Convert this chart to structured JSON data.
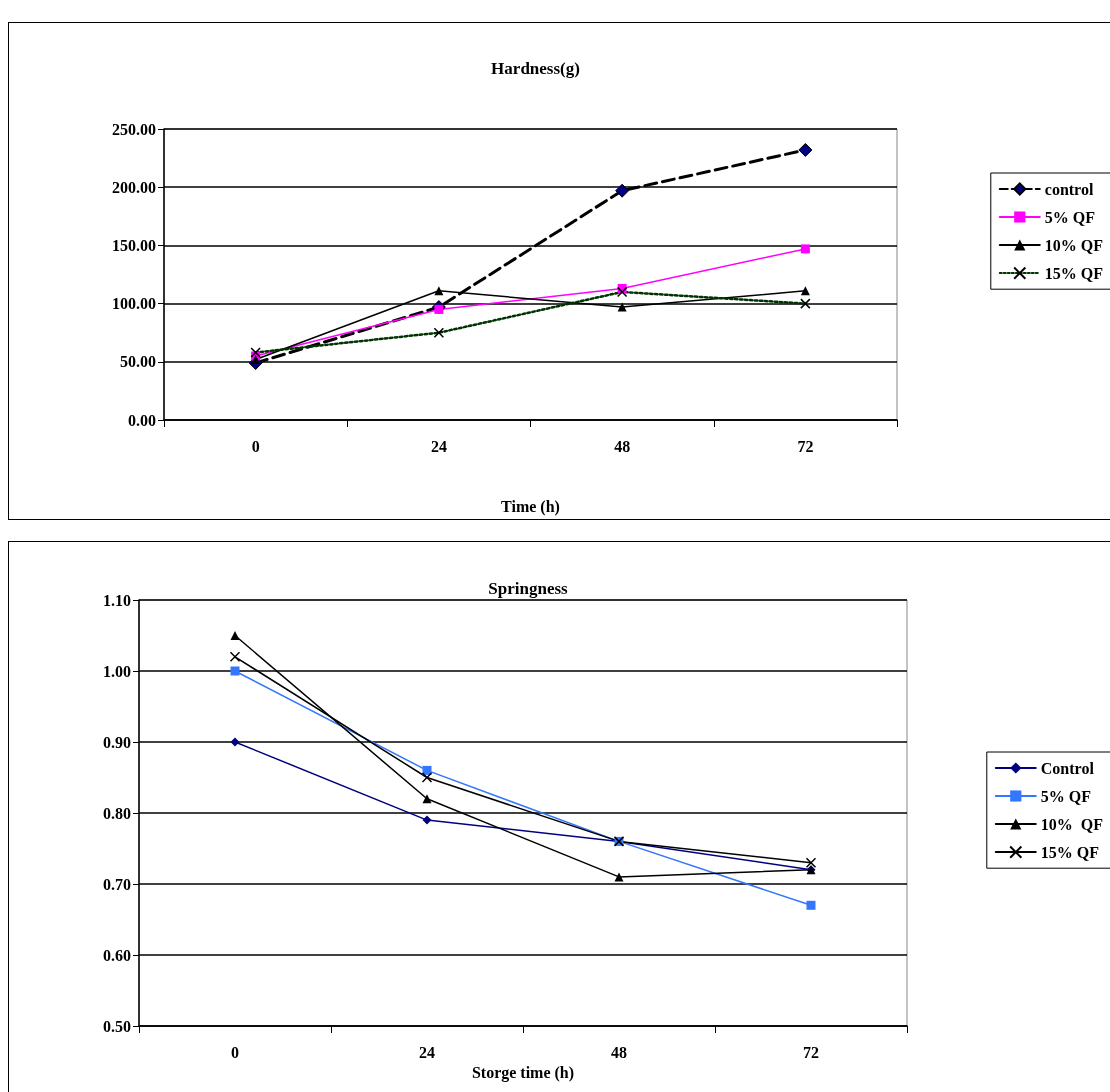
{
  "chart_data": [
    {
      "type": "line",
      "title": "Hardness(g)",
      "xlabel": "Time (h)",
      "categories": [
        "0",
        "24",
        "48",
        "72"
      ],
      "ylim": [
        0,
        250
      ],
      "yticks": [
        {
          "value": 0,
          "label": "0.00"
        },
        {
          "value": 50,
          "label": "50.00"
        },
        {
          "value": 100,
          "label": "100.00"
        },
        {
          "value": 150,
          "label": "150.00"
        },
        {
          "value": 200,
          "label": "200.00"
        },
        {
          "value": 250,
          "label": "250.00"
        }
      ],
      "grid": "y",
      "legend": "right",
      "series": [
        {
          "name": "control",
          "color": "#000080",
          "values": [
            49,
            97,
            197,
            232
          ],
          "marker": "diamond",
          "line_style": "dashed"
        },
        {
          "name": "5% QF",
          "color": "#ff00ff",
          "values": [
            55,
            95,
            113,
            147
          ],
          "marker": "square",
          "line_style": "solid"
        },
        {
          "name": "10% QF",
          "color": "#000000",
          "values": [
            52,
            111,
            97,
            111
          ],
          "marker": "triangle",
          "line_style": "solid"
        },
        {
          "name": "15% QF",
          "color": "#003300",
          "values": [
            58,
            75,
            110,
            100
          ],
          "marker": "cross",
          "line_style": "dotted"
        }
      ]
    },
    {
      "type": "line",
      "title": "Springness",
      "xlabel": "Storge time (h)",
      "categories": [
        "0",
        "24",
        "48",
        "72"
      ],
      "ylim": [
        0.5,
        1.1
      ],
      "yticks": [
        {
          "value": 0.5,
          "label": "0.50"
        },
        {
          "value": 0.6,
          "label": "0.60"
        },
        {
          "value": 0.7,
          "label": "0.70"
        },
        {
          "value": 0.8,
          "label": "0.80"
        },
        {
          "value": 0.9,
          "label": "0.90"
        },
        {
          "value": 1.0,
          "label": "1.00"
        },
        {
          "value": 1.1,
          "label": "1.10"
        }
      ],
      "grid": "y",
      "legend": "right",
      "series": [
        {
          "name": "Control",
          "color": "#000080",
          "values": [
            0.9,
            0.79,
            0.76,
            0.72
          ],
          "marker": "diamond",
          "line_style": "solid"
        },
        {
          "name": "5% QF",
          "color": "#3377ff",
          "values": [
            1.0,
            0.86,
            0.76,
            0.67
          ],
          "marker": "square",
          "line_style": "solid"
        },
        {
          "name": "10%  QF",
          "color": "#000000",
          "values": [
            1.05,
            0.82,
            0.71,
            0.72
          ],
          "marker": "triangle",
          "line_style": "solid"
        },
        {
          "name": "15% QF",
          "color": "#000000",
          "values": [
            1.02,
            0.85,
            0.76,
            0.73
          ],
          "marker": "cross",
          "line_style": "solid"
        }
      ]
    }
  ]
}
